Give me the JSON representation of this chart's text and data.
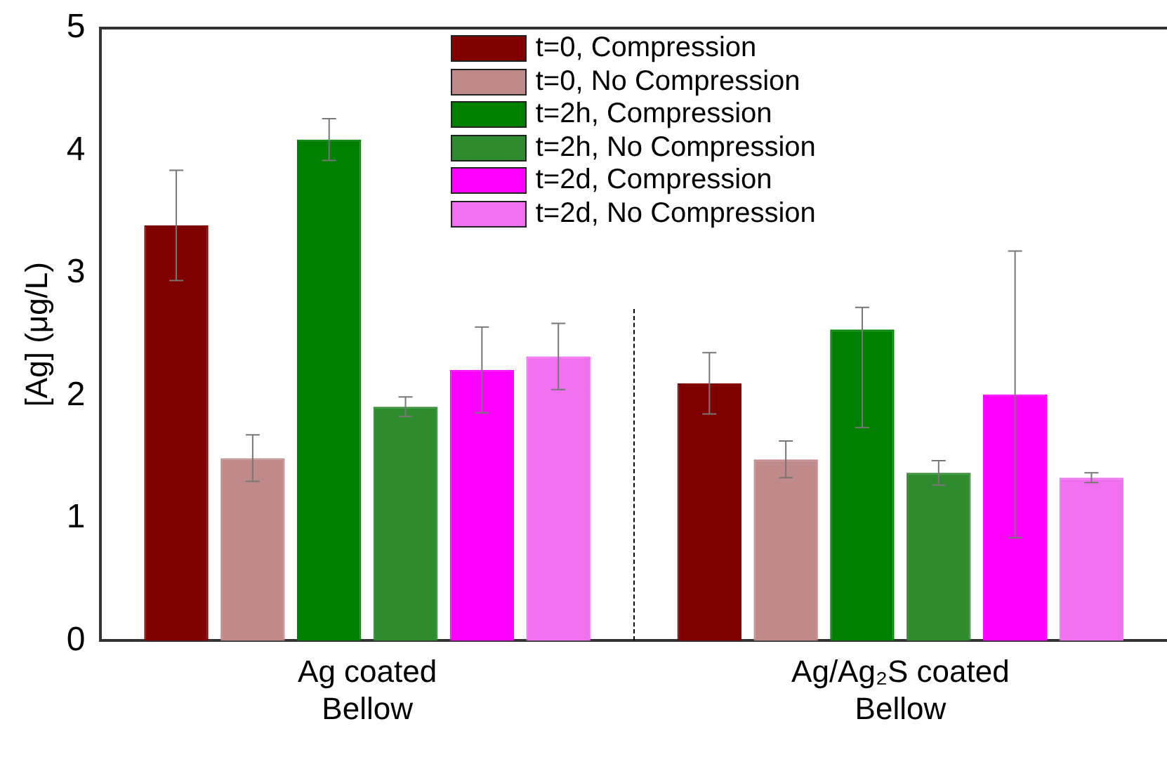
{
  "chart_data": {
    "type": "bar",
    "ylabel": "[Ag] (μg/L)",
    "categories": [
      "Ag coated\nBellow",
      "Ag/Ag₂S coated\nBellow"
    ],
    "series": [
      {
        "name": "t=0, Compression",
        "color": "#800000",
        "values": [
          3.39,
          2.1
        ],
        "errors": [
          0.45,
          0.25
        ]
      },
      {
        "name": "t=0, No Compression",
        "color": "#c08a8a",
        "values": [
          1.49,
          1.48
        ],
        "errors": [
          0.19,
          0.15
        ]
      },
      {
        "name": "t=2h, Compression",
        "color": "#008000",
        "values": [
          4.09,
          2.54
        ],
        "errors": [
          0.17,
          [
            1.74,
            2.72
          ]
        ]
      },
      {
        "name": "t=2h, No Compression",
        "color": "#2e8b2e",
        "values": [
          1.91,
          1.37
        ],
        "errors": [
          0.08,
          0.1
        ]
      },
      {
        "name": "t=2d, Compression",
        "color": "#ff00ff",
        "values": [
          2.21,
          2.01
        ],
        "errors": [
          0.35,
          1.17
        ]
      },
      {
        "name": "t=2d, No Compression",
        "color": "#f070f0",
        "values": [
          2.32,
          1.33
        ],
        "errors": [
          0.27,
          0.04
        ]
      }
    ],
    "ylim": [
      0,
      5
    ],
    "yticks": [
      0,
      1,
      2,
      3,
      4,
      5
    ],
    "grid": false,
    "legend": "top"
  }
}
